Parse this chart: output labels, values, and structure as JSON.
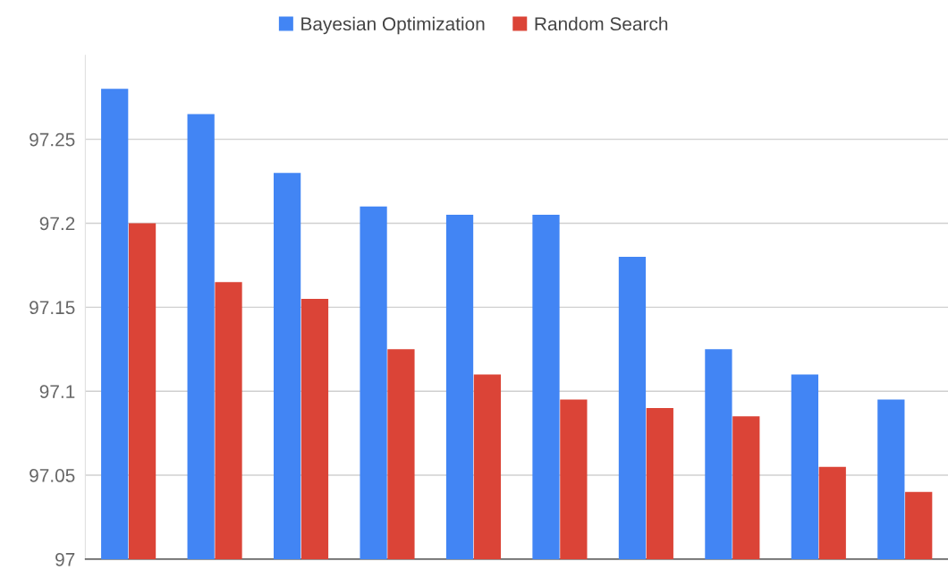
{
  "chart_data": {
    "type": "bar",
    "categories": [
      null,
      null,
      null,
      null,
      null,
      null,
      null,
      null,
      null,
      null
    ],
    "series": [
      {
        "name": "Bayesian Optimization",
        "color": "#4285f4",
        "values": [
          97.28,
          97.265,
          97.23,
          97.21,
          97.205,
          97.205,
          97.18,
          97.125,
          97.11,
          97.095
        ]
      },
      {
        "name": "Random Search",
        "color": "#db4437",
        "values": [
          97.2,
          97.165,
          97.155,
          97.125,
          97.11,
          97.095,
          97.09,
          97.085,
          97.055,
          97.04
        ]
      }
    ],
    "ylim": [
      97,
      97.3
    ],
    "yticks": [
      97,
      97.05,
      97.1,
      97.15,
      97.2,
      97.25
    ],
    "grid": "y",
    "legend": "top"
  }
}
